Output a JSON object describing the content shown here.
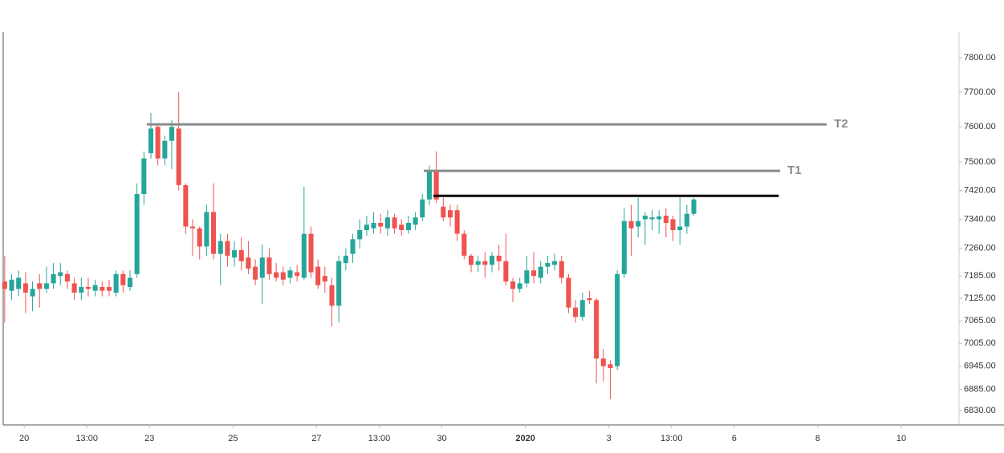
{
  "chart_data": {
    "type": "candlestick",
    "up_color": "#26a69a",
    "down_color": "#ef5350",
    "log_scale": true,
    "ylim": [
      6793,
      7876
    ],
    "yticks": [
      {
        "value": 6830,
        "label": "6830.00"
      },
      {
        "value": 6885,
        "label": "6885.00"
      },
      {
        "value": 6945,
        "label": "6945.00"
      },
      {
        "value": 7005,
        "label": "7005.00"
      },
      {
        "value": 7065,
        "label": "7065.00"
      },
      {
        "value": 7125,
        "label": "7125.00"
      },
      {
        "value": 7185,
        "label": "7185.00"
      },
      {
        "value": 7260,
        "label": "7260.00"
      },
      {
        "value": 7340,
        "label": "7340.00"
      },
      {
        "value": 7420,
        "label": "7420.00"
      },
      {
        "value": 7500,
        "label": "7500.00"
      },
      {
        "value": 7600,
        "label": "7600.00"
      },
      {
        "value": 7700,
        "label": "7700.00"
      },
      {
        "value": 7800,
        "label": "7800.00"
      }
    ],
    "xlim": [
      -0.1,
      137.1
    ],
    "xticks": [
      {
        "value": 2.8,
        "label": "20"
      },
      {
        "value": 11.8,
        "label": "13:00"
      },
      {
        "value": 20.8,
        "label": "23"
      },
      {
        "value": 32.8,
        "label": "25"
      },
      {
        "value": 44.8,
        "label": "27"
      },
      {
        "value": 53.8,
        "label": "13:00"
      },
      {
        "value": 62.8,
        "label": "30"
      },
      {
        "value": 74.8,
        "label": "2020"
      },
      {
        "value": 86.8,
        "label": "3"
      },
      {
        "value": 95.8,
        "label": "13:00"
      },
      {
        "value": 104.8,
        "label": "6"
      },
      {
        "value": 116.8,
        "label": "8"
      },
      {
        "value": 128.8,
        "label": "10"
      }
    ],
    "open": [
      7170,
      7145,
      7150,
      7165,
      7130,
      7165,
      7150,
      7165,
      7185,
      7190,
      7165,
      7140,
      7155,
      7145,
      7155,
      7155,
      7140,
      7190,
      7155,
      7190,
      7410,
      7525,
      7600,
      7510,
      7560,
      7595,
      7435,
      7320,
      7315,
      7265,
      7360,
      7245,
      7280,
      7235,
      7255,
      7235,
      7210,
      7180,
      7235,
      7195,
      7195,
      7180,
      7195,
      7180,
      7300,
      7210,
      7185,
      7160,
      7105,
      7220,
      7245,
      7285,
      7310,
      7315,
      7330,
      7315,
      7345,
      7325,
      7310,
      7325,
      7345,
      7395,
      7475,
      7375,
      7365,
      7365,
      7300,
      7240,
      7215,
      7225,
      7215,
      7240,
      7225,
      7170,
      7150,
      7165,
      7200,
      7180,
      7210,
      7215,
      7225,
      7180,
      7100,
      7075,
      7125,
      7120,
      6965,
      6950,
      6945,
      7190,
      7335,
      7320,
      7340,
      7340,
      7340,
      7350,
      7340,
      7310,
      7320,
      7355
    ],
    "high": [
      7240,
      7190,
      7200,
      7195,
      7170,
      7190,
      7210,
      7220,
      7220,
      7200,
      7180,
      7180,
      7180,
      7175,
      7170,
      7175,
      7200,
      7200,
      7200,
      7440,
      7530,
      7640,
      7610,
      7575,
      7620,
      7700,
      7440,
      7340,
      7320,
      7380,
      7440,
      7300,
      7300,
      7280,
      7290,
      7280,
      7230,
      7270,
      7260,
      7220,
      7210,
      7210,
      7215,
      7430,
      7320,
      7230,
      7210,
      7180,
      7240,
      7260,
      7300,
      7340,
      7350,
      7360,
      7355,
      7365,
      7355,
      7340,
      7350,
      7360,
      7410,
      7490,
      7530,
      7400,
      7380,
      7380,
      7310,
      7245,
      7240,
      7250,
      7250,
      7270,
      7300,
      7180,
      7180,
      7240,
      7250,
      7225,
      7240,
      7245,
      7240,
      7190,
      7120,
      7140,
      7145,
      7125,
      6990,
      6960,
      7200,
      7370,
      7380,
      7400,
      7360,
      7365,
      7365,
      7370,
      7350,
      7400,
      7380,
      7400
    ],
    "low": [
      7060,
      7120,
      7130,
      7085,
      7090,
      7100,
      7140,
      7150,
      7160,
      7150,
      7120,
      7120,
      7130,
      7130,
      7130,
      7130,
      7130,
      7140,
      7145,
      7180,
      7380,
      7510,
      7490,
      7490,
      7480,
      7420,
      7300,
      7240,
      7230,
      7240,
      7230,
      7160,
      7210,
      7210,
      7200,
      7190,
      7160,
      7110,
      7175,
      7170,
      7160,
      7165,
      7170,
      7175,
      7180,
      7150,
      7140,
      7050,
      7060,
      7200,
      7220,
      7260,
      7295,
      7300,
      7300,
      7295,
      7300,
      7295,
      7300,
      7310,
      7335,
      7380,
      7385,
      7335,
      7320,
      7280,
      7230,
      7195,
      7195,
      7180,
      7195,
      7200,
      7160,
      7115,
      7140,
      7155,
      7165,
      7165,
      7190,
      7200,
      7165,
      7085,
      7060,
      7065,
      7110,
      6900,
      6905,
      6860,
      6935,
      7180,
      7240,
      7290,
      7270,
      7310,
      7300,
      7290,
      7280,
      7270,
      7300,
      7350
    ],
    "close": [
      7150,
      7175,
      7180,
      7140,
      7150,
      7150,
      7165,
      7190,
      7195,
      7170,
      7140,
      7155,
      7150,
      7160,
      7145,
      7145,
      7190,
      7160,
      7180,
      7410,
      7510,
      7595,
      7510,
      7560,
      7600,
      7435,
      7320,
      7315,
      7265,
      7360,
      7245,
      7280,
      7240,
      7255,
      7225,
      7205,
      7175,
      7235,
      7190,
      7180,
      7175,
      7200,
      7185,
      7300,
      7195,
      7160,
      7170,
      7105,
      7225,
      7240,
      7285,
      7310,
      7325,
      7330,
      7320,
      7345,
      7315,
      7310,
      7330,
      7345,
      7395,
      7475,
      7395,
      7345,
      7345,
      7300,
      7240,
      7215,
      7225,
      7215,
      7240,
      7225,
      7170,
      7150,
      7165,
      7200,
      7185,
      7210,
      7220,
      7225,
      7180,
      7100,
      7075,
      7120,
      7120,
      6965,
      6945,
      6940,
      7190,
      7335,
      7315,
      7335,
      7350,
      7345,
      7348,
      7330,
      7310,
      7320,
      7355,
      7395
    ],
    "lines": [
      {
        "label": "T2",
        "value": 7607,
        "x": [
          20.4,
          118.1
        ],
        "color": "#8a8a8a"
      },
      {
        "label": "T1",
        "value": 7475,
        "x": [
          60.2,
          111.4
        ],
        "color": "#8a8a8a"
      },
      {
        "value": 7405,
        "x": [
          61.6,
          111.2
        ],
        "color": "#000000"
      }
    ]
  }
}
